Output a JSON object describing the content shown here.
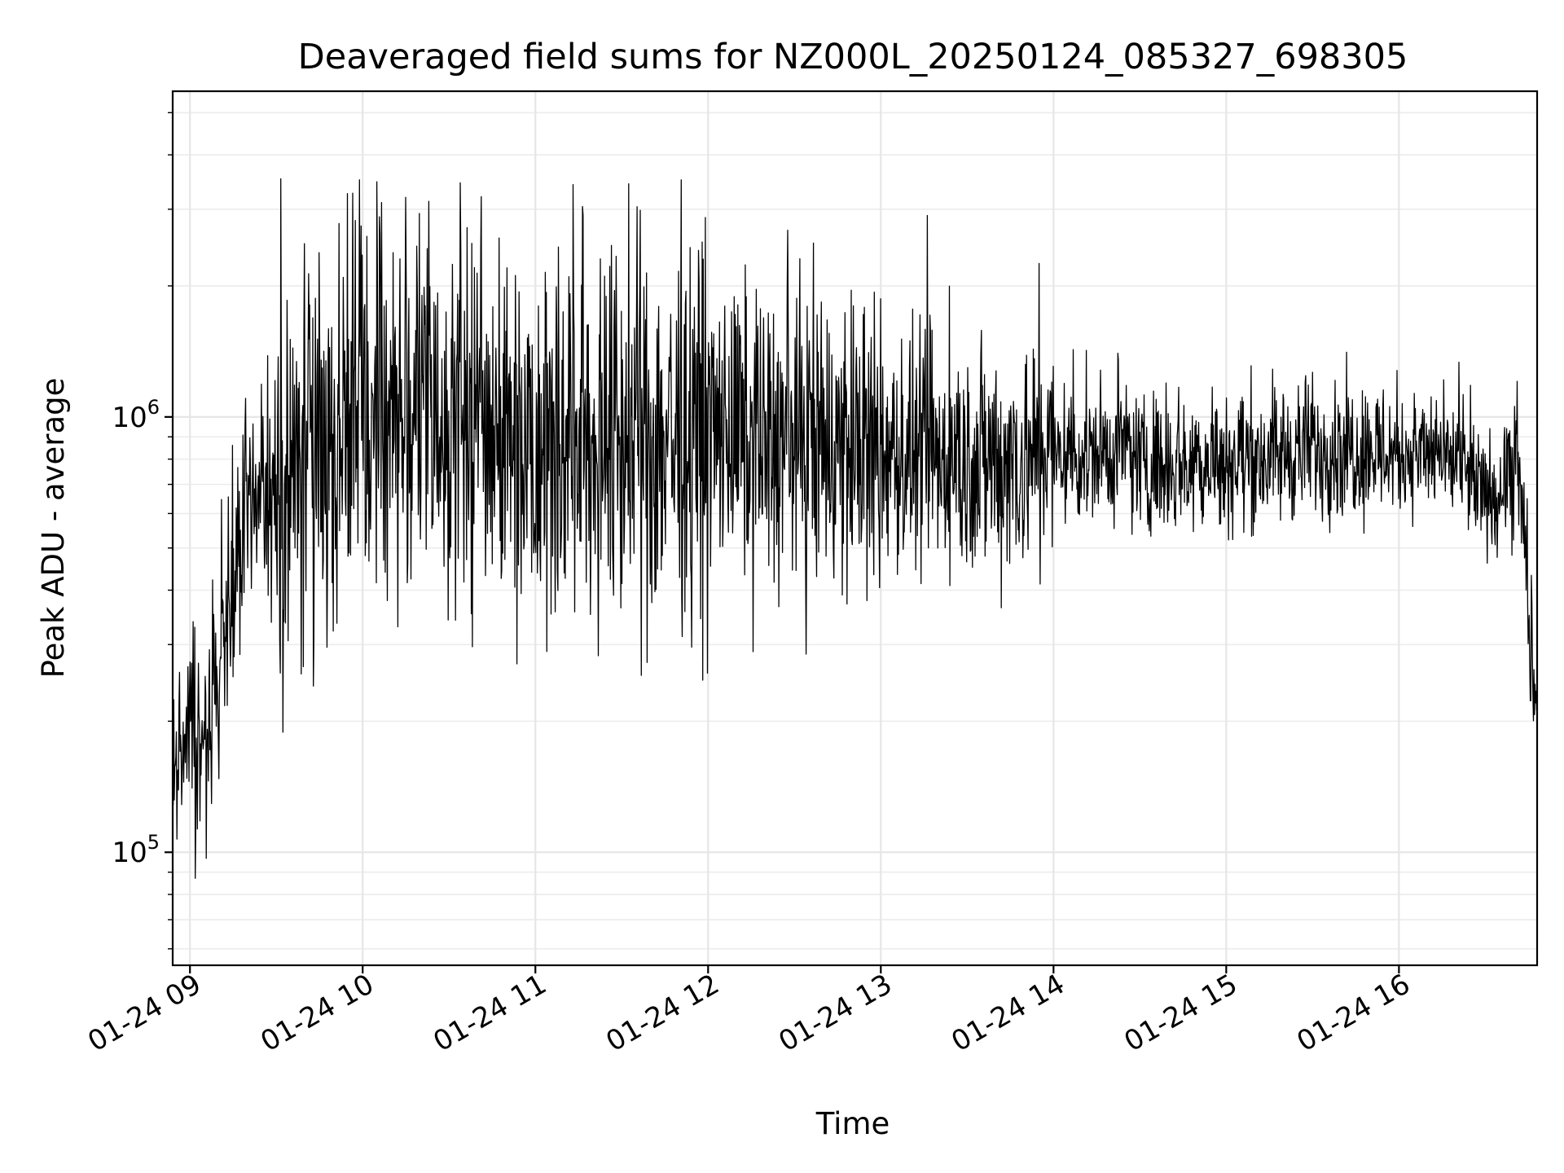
{
  "chart_data": {
    "type": "line",
    "title": "Deaveraged field sums for NZ000L_20250124_085327_698305",
    "xlabel": "Time",
    "ylabel": "Peak ADU - average",
    "y_scale": "log",
    "ylim": [
      55000,
      5600000
    ],
    "xlim": [
      "2025-01-24 08:54",
      "2025-01-24 16:48"
    ],
    "x_ticks": [
      "2025-01-24 09:00",
      "2025-01-24 10:00",
      "2025-01-24 11:00",
      "2025-01-24 12:00",
      "2025-01-24 13:00",
      "2025-01-24 14:00",
      "2025-01-24 15:00",
      "2025-01-24 16:00"
    ],
    "x_tick_labels": [
      "01-24 09",
      "01-24 10",
      "01-24 11",
      "01-24 12",
      "01-24 13",
      "01-24 14",
      "01-24 15",
      "01-24 16"
    ],
    "y_ticks": [
      100000,
      1000000
    ],
    "grid": true,
    "line_color": "#000000",
    "series": [
      {
        "x": [
          "2025-01-24 08:54",
          "2025-01-24 08:56",
          "2025-01-24 08:58",
          "2025-01-24 09:00",
          "2025-01-24 09:02",
          "2025-01-24 09:05",
          "2025-01-24 09:08",
          "2025-01-24 09:11",
          "2025-01-24 09:14",
          "2025-01-24 09:17",
          "2025-01-24 09:20",
          "2025-01-24 09:25",
          "2025-01-24 09:30",
          "2025-01-24 09:35",
          "2025-01-24 09:40",
          "2025-01-24 09:45",
          "2025-01-24 09:50",
          "2025-01-24 09:55",
          "2025-01-24 10:00",
          "2025-01-24 10:10",
          "2025-01-24 10:20",
          "2025-01-24 10:30",
          "2025-01-24 10:40",
          "2025-01-24 10:50",
          "2025-01-24 11:00",
          "2025-01-24 11:15",
          "2025-01-24 11:30",
          "2025-01-24 11:45",
          "2025-01-24 12:00",
          "2025-01-24 12:15",
          "2025-01-24 12:30",
          "2025-01-24 12:45",
          "2025-01-24 13:00",
          "2025-01-24 13:15",
          "2025-01-24 13:30",
          "2025-01-24 13:45",
          "2025-01-24 14:00",
          "2025-01-24 14:15",
          "2025-01-24 14:30",
          "2025-01-24 14:45",
          "2025-01-24 15:00",
          "2025-01-24 15:15",
          "2025-01-24 15:30",
          "2025-01-24 15:45",
          "2025-01-24 16:00",
          "2025-01-24 16:10",
          "2025-01-24 16:20",
          "2025-01-24 16:30",
          "2025-01-24 16:38",
          "2025-01-24 16:42",
          "2025-01-24 16:45",
          "2025-01-24 16:48"
        ],
        "y": [
          130000,
          180000,
          160000,
          170000,
          160000,
          190000,
          230000,
          280000,
          360000,
          480000,
          600000,
          650000,
          700000,
          780000,
          850000,
          900000,
          950000,
          1000000,
          1050000,
          1100000,
          1050000,
          1000000,
          1000000,
          950000,
          950000,
          900000,
          900000,
          900000,
          920000,
          900000,
          880000,
          850000,
          820000,
          800000,
          800000,
          800000,
          820000,
          830000,
          800000,
          790000,
          800000,
          810000,
          850000,
          850000,
          830000,
          820000,
          780000,
          650000,
          700000,
          750000,
          350000,
          190000
        ]
      }
    ]
  }
}
